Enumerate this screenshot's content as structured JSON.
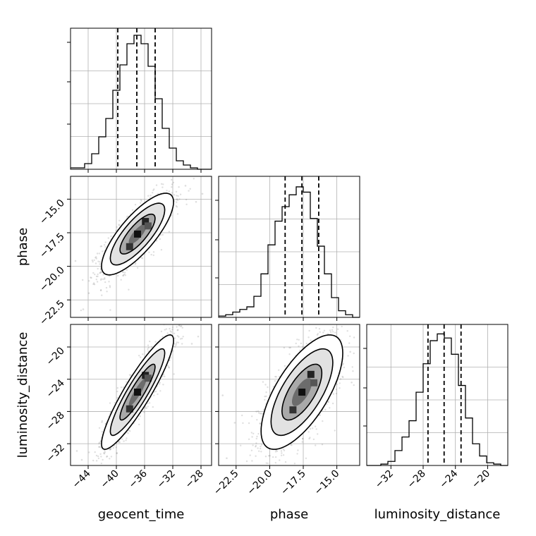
{
  "chart_data": {
    "type": "corner",
    "parameters": [
      {
        "key": "geocent_time",
        "label": "geocent_time",
        "range": [
          -46.5,
          -26.5
        ],
        "ticks": [
          -44,
          -40,
          -36,
          -32,
          -28
        ],
        "tick_labels": [
          "−44",
          "−40",
          "−36",
          "−32",
          "−28"
        ],
        "histogram": {
          "bin_edges": [
            -46.5,
            -45.5,
            -44.5,
            -43.5,
            -42.5,
            -41.5,
            -40.5,
            -39.5,
            -38.5,
            -37.5,
            -36.5,
            -35.5,
            -34.5,
            -33.5,
            -32.5,
            -31.5,
            -30.5,
            -29.5,
            -28.5,
            -27.5,
            -26.5
          ],
          "counts": [
            0.01,
            0.01,
            0.04,
            0.11,
            0.23,
            0.36,
            0.56,
            0.74,
            0.89,
            0.95,
            0.89,
            0.73,
            0.5,
            0.29,
            0.15,
            0.06,
            0.03,
            0.01,
            0,
            0
          ],
          "ymax": 1.0
        },
        "quantiles": [
          -39.8,
          -37.1,
          -34.5
        ]
      },
      {
        "key": "phase",
        "label": "phase",
        "range": [
          -23.8,
          -13.3
        ],
        "ticks": [
          -22.5,
          -20.0,
          -17.5,
          -15.0
        ],
        "tick_labels": [
          "−22.5",
          "−20.0",
          "−17.5",
          "−15.0"
        ],
        "histogram": {
          "bin_edges": [
            -23.8,
            -23.275,
            -22.75,
            -22.225,
            -21.7,
            -21.175,
            -20.65,
            -20.125,
            -19.6,
            -19.075,
            -18.55,
            -18.025,
            -17.5,
            -16.975,
            -16.45,
            -15.925,
            -15.4,
            -14.875,
            -14.35,
            -13.825,
            -13.3
          ],
          "counts": [
            0.01,
            0.02,
            0.04,
            0.06,
            0.08,
            0.16,
            0.33,
            0.55,
            0.73,
            0.84,
            0.93,
            0.99,
            0.95,
            0.75,
            0.54,
            0.33,
            0.15,
            0.05,
            0.02,
            0
          ],
          "ymax": 1.07
        },
        "quantiles": [
          -18.85,
          -17.6,
          -16.35
        ]
      },
      {
        "key": "luminosity_distance",
        "label": "luminosity_distance",
        "range": [
          -35,
          -17.5
        ],
        "ticks": [
          -32,
          -28,
          -24,
          -20
        ],
        "tick_labels": [
          "−32",
          "−28",
          "−24",
          "−20"
        ],
        "histogram": {
          "bin_edges": [
            -35,
            -34.125,
            -33.25,
            -32.375,
            -31.5,
            -30.625,
            -29.75,
            -28.875,
            -28,
            -27.125,
            -26.25,
            -25.375,
            -24.5,
            -23.625,
            -22.75,
            -21.875,
            -21,
            -20.125,
            -19.25,
            -18.375,
            -17.5
          ],
          "counts": [
            0,
            0,
            0.01,
            0.03,
            0.11,
            0.21,
            0.33,
            0.54,
            0.75,
            0.92,
            0.97,
            0.94,
            0.82,
            0.59,
            0.35,
            0.16,
            0.07,
            0.02,
            0.01,
            0
          ],
          "ymax": 1.04
        },
        "quantiles": [
          -27.4,
          -25.4,
          -23.3
        ]
      }
    ],
    "ylims_2d": {
      "phase": [
        -23.8,
        -13.3
      ],
      "luminosity_distance": [
        -34.7,
        -17.2
      ]
    },
    "pairs": [
      {
        "x": "geocent_time",
        "y": "phase",
        "center": [
          -37.0,
          -17.6
        ],
        "cov": [
          [
            6.2,
            2.9
          ],
          [
            2.9,
            2.2
          ]
        ],
        "outliers": [
          [
            -44.7,
            -23.2
          ],
          [
            -45.8,
            -19.6
          ],
          [
            -30.2,
            -14.0
          ],
          [
            -28.7,
            -15.2
          ],
          [
            -43.9,
            -22.0
          ],
          [
            -27.8,
            -14.6
          ]
        ]
      },
      {
        "x": "geocent_time",
        "y": "luminosity_distance",
        "center": [
          -37.0,
          -25.6
        ],
        "cov": [
          [
            6.2,
            7.8
          ],
          [
            7.8,
            12.0
          ]
        ],
        "outliers": [
          [
            -45.6,
            -32.9
          ],
          [
            -28.4,
            -18.7
          ],
          [
            -44.9,
            -34.0
          ],
          [
            -29.3,
            -19.6
          ]
        ]
      },
      {
        "x": "phase",
        "y": "luminosity_distance",
        "center": [
          -17.6,
          -25.6
        ],
        "cov": [
          [
            2.2,
            3.5
          ],
          [
            3.5,
            12.0
          ]
        ],
        "outliers": [
          [
            -23.2,
            -33.8
          ],
          [
            -22.6,
            -29.4
          ],
          [
            -14.0,
            -20.6
          ],
          [
            -13.9,
            -24.4
          ],
          [
            -23.5,
            -26.0
          ]
        ]
      }
    ],
    "grid": true
  }
}
